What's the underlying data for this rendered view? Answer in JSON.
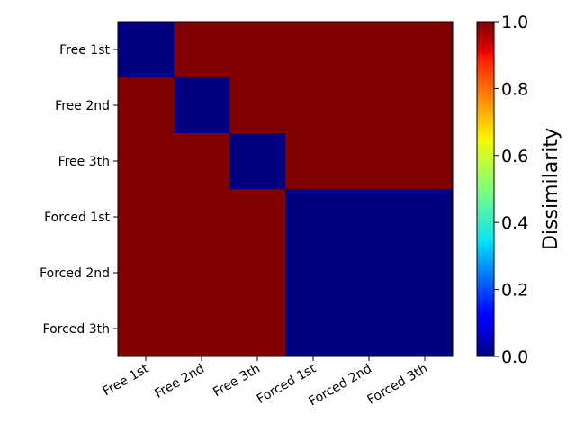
{
  "chart_data": {
    "type": "heatmap",
    "x_categories": [
      "Free 1st",
      "Free 2nd",
      "Free 3th",
      "Forced 1st",
      "Forced 2nd",
      "Forced 3th"
    ],
    "y_categories": [
      "Free 1st",
      "Free 2nd",
      "Free 3th",
      "Forced 1st",
      "Forced 2nd",
      "Forced 3th"
    ],
    "values": [
      [
        0,
        1,
        1,
        1,
        1,
        1
      ],
      [
        1,
        0,
        1,
        1,
        1,
        1
      ],
      [
        1,
        1,
        0,
        1,
        1,
        1
      ],
      [
        1,
        1,
        1,
        0,
        0,
        0
      ],
      [
        1,
        1,
        1,
        0,
        0,
        0
      ],
      [
        1,
        1,
        1,
        0,
        0,
        0
      ]
    ],
    "colormap": "jet",
    "vmin": 0,
    "vmax": 1,
    "colorbar": {
      "label": "Dissimilarity",
      "ticks": [
        0.0,
        0.2,
        0.4,
        0.6,
        0.8,
        1.0
      ],
      "tick_labels": [
        "0.0",
        "0.2",
        "0.4",
        "0.6",
        "0.8",
        "1.0"
      ]
    }
  }
}
